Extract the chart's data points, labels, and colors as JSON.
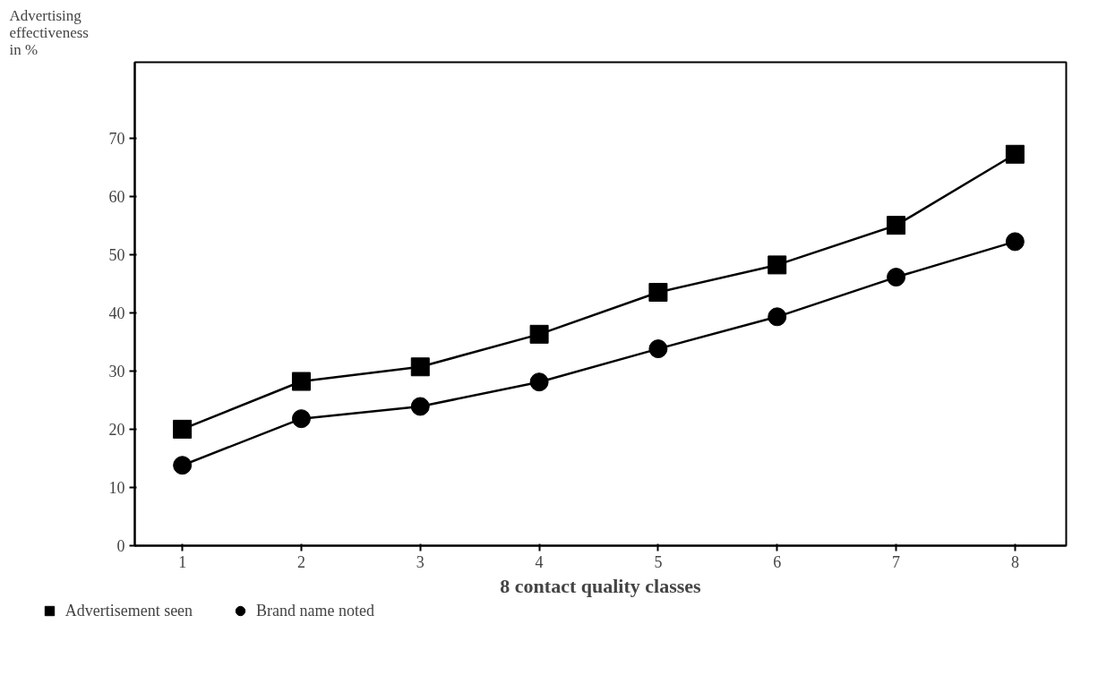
{
  "chart_data": {
    "type": "line",
    "ylabel": "Advertising effectiveness in %",
    "xlabel": "8 contact quality classes",
    "x": [
      1,
      2,
      3,
      4,
      5,
      6,
      7,
      8
    ],
    "series": [
      {
        "name": "Advertisement seen",
        "color": "#000000",
        "marker": "square",
        "values": [
          20,
          28.2,
          30.7,
          36.3,
          43.5,
          48.2,
          55,
          67.2
        ]
      },
      {
        "name": "Brand name noted",
        "color": "#000000",
        "marker": "circle",
        "values": [
          13.8,
          21.8,
          23.9,
          28.1,
          33.8,
          39.3,
          46.1,
          52.2
        ]
      }
    ],
    "xlim": [
      0.6,
      8.43
    ],
    "xticks": [
      1,
      2,
      3,
      4,
      5,
      6,
      7,
      8
    ],
    "ylim": [
      0,
      83
    ],
    "yticks": [
      0,
      10,
      20,
      30,
      40,
      50,
      60,
      70
    ],
    "grid": false,
    "legend": "bottom",
    "line_style": "solid"
  }
}
